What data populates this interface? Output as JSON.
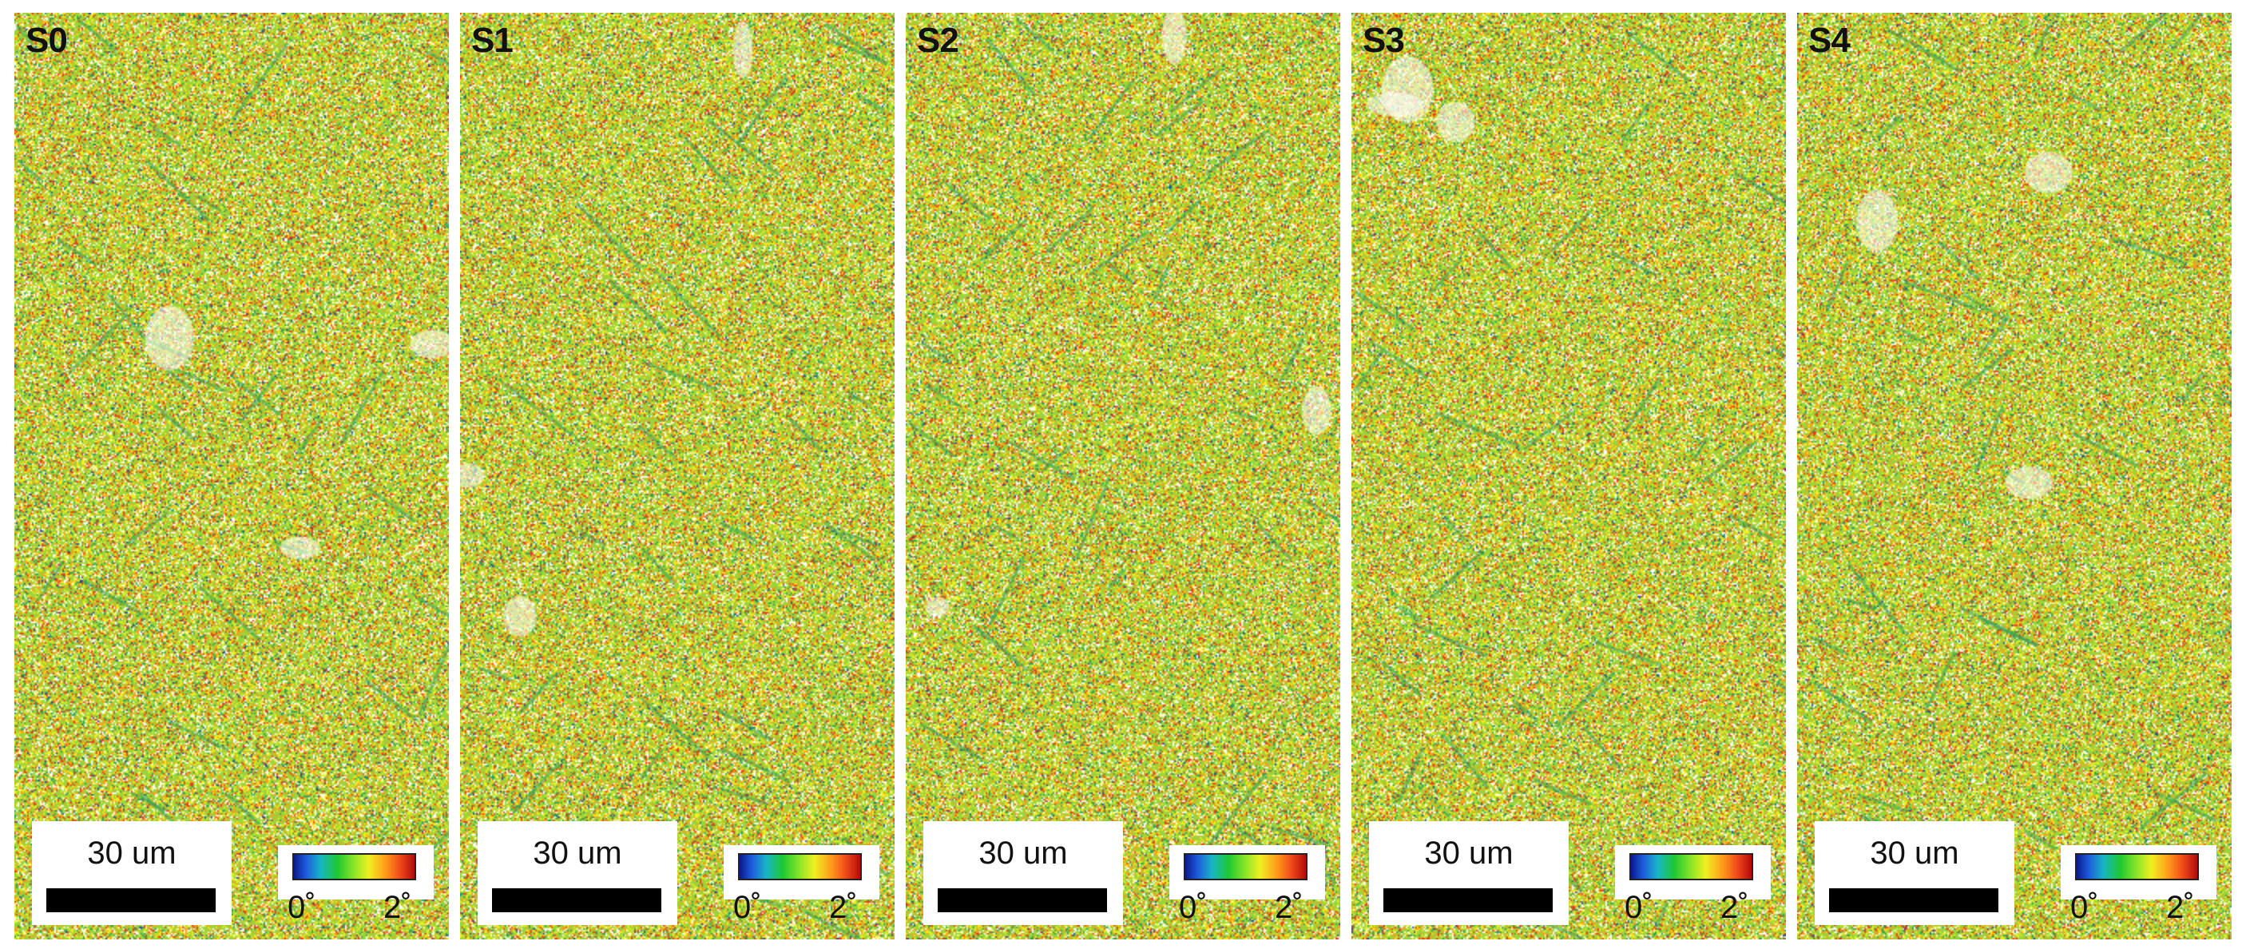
{
  "colors": {
    "green": "#9bd43a",
    "yellow": "#f0f020",
    "orange": "#ff9a1a",
    "red": "#e03a1a",
    "dark_green": "#2a9a5a",
    "blue": "#1e3a9c",
    "white": "#ffffff",
    "background": "#b5dc46"
  },
  "panels": [
    {
      "label": "S0",
      "scalebar": "30 um",
      "tick_min": "0˚",
      "tick_max": "2˚"
    },
    {
      "label": "S1",
      "scalebar": "30 um",
      "tick_min": "0˚",
      "tick_max": "2˚"
    },
    {
      "label": "S2",
      "scalebar": "30 um",
      "tick_min": "0˚",
      "tick_max": "2˚"
    },
    {
      "label": "S3",
      "scalebar": "30 um",
      "tick_min": "0˚",
      "tick_max": "2˚"
    },
    {
      "label": "S4",
      "scalebar": "30 um",
      "tick_min": "0˚",
      "tick_max": "2˚"
    }
  ]
}
